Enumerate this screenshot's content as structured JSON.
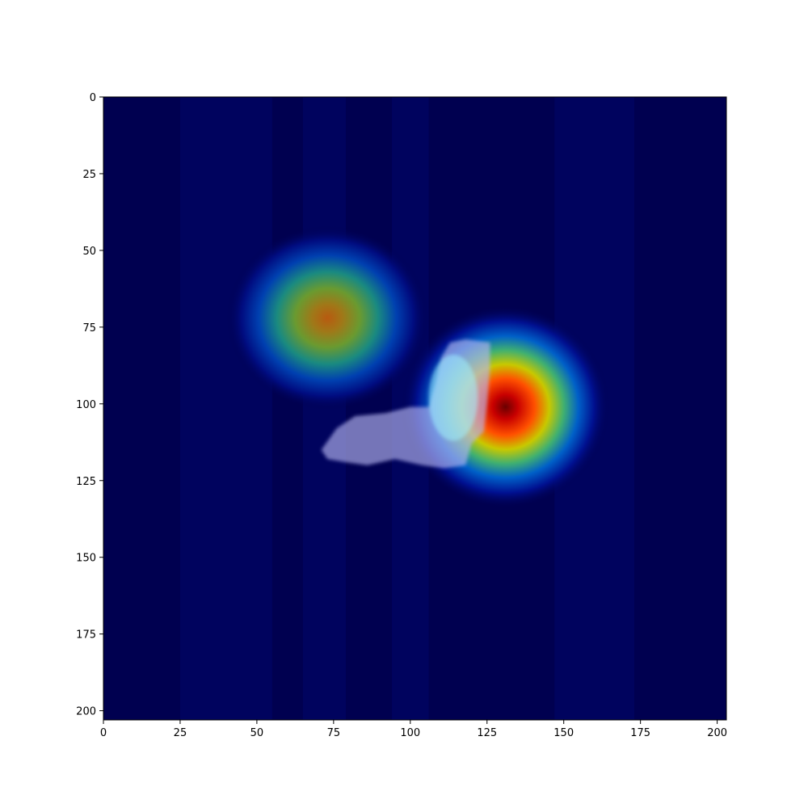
{
  "chart_data": {
    "type": "heatmap",
    "title": "",
    "xlabel": "",
    "ylabel": "",
    "xlim": [
      0,
      203
    ],
    "ylim": [
      203,
      0
    ],
    "x_ticks": [
      0,
      25,
      50,
      75,
      100,
      125,
      150,
      175,
      200
    ],
    "y_ticks": [
      0,
      25,
      50,
      75,
      100,
      125,
      150,
      175,
      200
    ],
    "x_tick_labels": [
      "0",
      "25",
      "50",
      "75",
      "100",
      "125",
      "150",
      "175",
      "200"
    ],
    "y_tick_labels": [
      "0",
      "25",
      "50",
      "75",
      "100",
      "125",
      "150",
      "175",
      "200"
    ],
    "colormap": "jet",
    "background_color": "#000050",
    "hotspots": [
      {
        "x": 73,
        "y": 72,
        "intensity": 0.72
      },
      {
        "x": 131,
        "y": 101,
        "intensity": 1.0
      }
    ],
    "overlay_object": {
      "x_range": [
        71,
        126
      ],
      "y_range": [
        77,
        121
      ],
      "color": "#b4b4f0"
    },
    "grid": false,
    "legend": "none"
  }
}
